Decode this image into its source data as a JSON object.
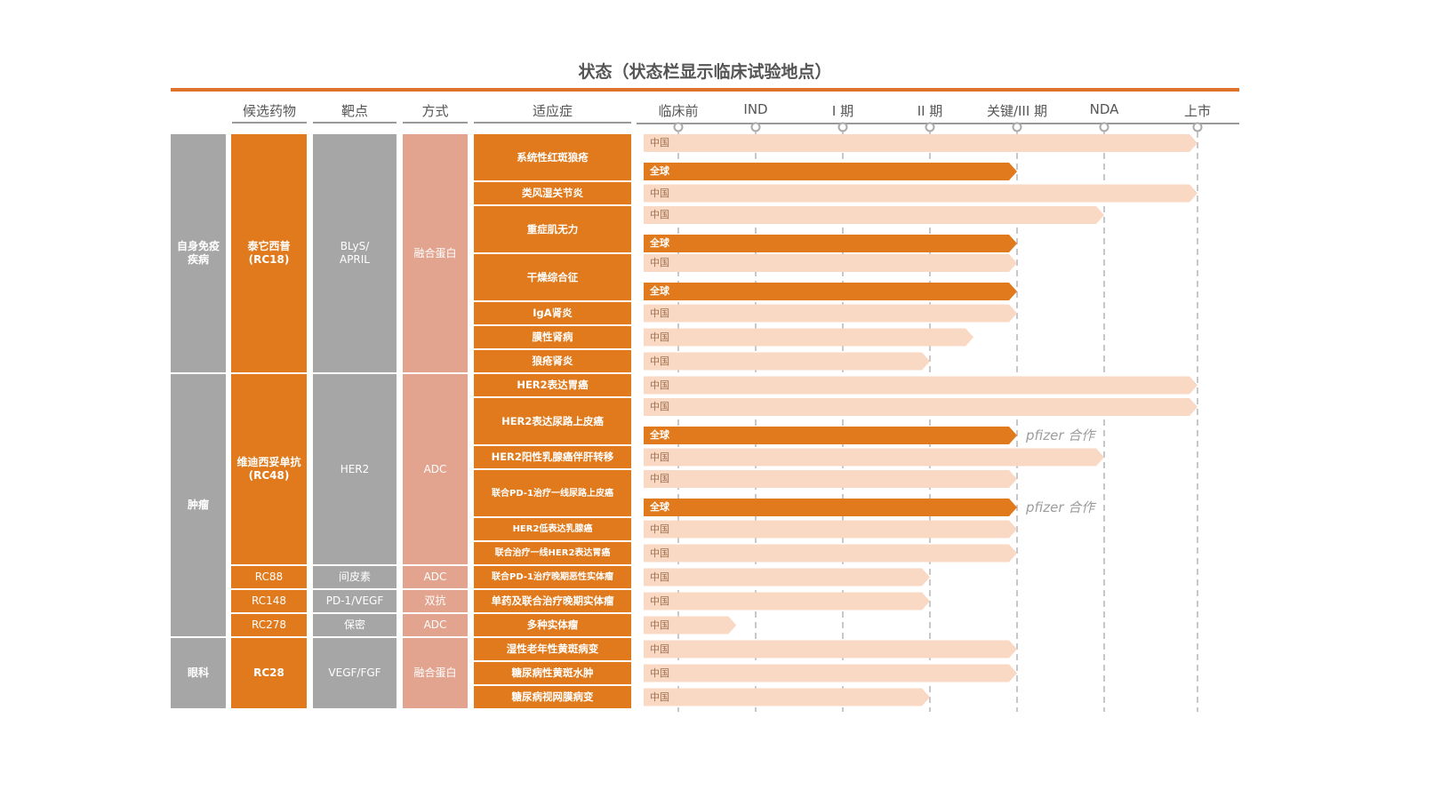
{
  "title": "状态（状态栏显示临床试验地点）",
  "columns": {
    "drug": "候选药物",
    "target": "靶点",
    "modality": "方式",
    "indication": "适应症"
  },
  "chart_data": {
    "type": "gantt",
    "phases": [
      "临床前",
      "IND",
      "I 期",
      "II 期",
      "关键/III  期",
      "NDA",
      "上市"
    ],
    "region_labels": {
      "cn": "中国",
      "global": "全球"
    },
    "colors": {
      "china_bar": "#F9D8C4",
      "global_bar": "#E07A1C",
      "grey": "#A6A6A6",
      "orange": "#E07A1C",
      "pink": "#E2A48F"
    },
    "categories": [
      {
        "name": "自身免疫\n疾病"
      },
      {
        "name": "肿瘤"
      },
      {
        "name": "眼科"
      }
    ],
    "drugs": [
      {
        "name": "泰它西普\n(RC18)",
        "target": "BLyS/\nAPRIL",
        "modality": "融合蛋白"
      },
      {
        "name": "维迪西妥单抗\n(RC48)",
        "target": "HER2",
        "modality": "ADC"
      },
      {
        "name": "RC88",
        "target": "间皮素",
        "modality": "ADC"
      },
      {
        "name": "RC148",
        "target": "PD-1/VEGF",
        "modality": "双抗"
      },
      {
        "name": "RC278",
        "target": "保密",
        "modality": "ADC"
      },
      {
        "name": "RC28",
        "target": "VEGF/FGF",
        "modality": "融合蛋白"
      }
    ],
    "indications": [
      {
        "name": "系统性红斑狼疮",
        "drug": 0,
        "bars": [
          {
            "region": "cn",
            "progress": 6
          },
          {
            "region": "global",
            "progress": 4
          }
        ]
      },
      {
        "name": "类风湿关节炎",
        "drug": 0,
        "bars": [
          {
            "region": "cn",
            "progress": 6
          }
        ]
      },
      {
        "name": "重症肌无力",
        "drug": 0,
        "bars": [
          {
            "region": "cn",
            "progress": 5
          },
          {
            "region": "global",
            "progress": 4
          }
        ]
      },
      {
        "name": "干燥综合征",
        "drug": 0,
        "bars": [
          {
            "region": "cn",
            "progress": 4
          },
          {
            "region": "global",
            "progress": 4
          }
        ]
      },
      {
        "name": "IgA肾炎",
        "drug": 0,
        "bars": [
          {
            "region": "cn",
            "progress": 4
          }
        ]
      },
      {
        "name": "膜性肾病",
        "drug": 0,
        "bars": [
          {
            "region": "cn",
            "progress": 3.5
          }
        ]
      },
      {
        "name": "狼疮肾炎",
        "drug": 0,
        "bars": [
          {
            "region": "cn",
            "progress": 3
          }
        ]
      },
      {
        "name": "HER2表达胃癌",
        "drug": 1,
        "bars": [
          {
            "region": "cn",
            "progress": 6
          }
        ]
      },
      {
        "name": "HER2表达尿路上皮癌",
        "drug": 1,
        "bars": [
          {
            "region": "cn",
            "progress": 6
          },
          {
            "region": "global",
            "progress": 4,
            "note": "pfizer  合作"
          }
        ]
      },
      {
        "name": "HER2阳性乳腺癌伴肝转移",
        "drug": 1,
        "bars": [
          {
            "region": "cn",
            "progress": 5
          }
        ]
      },
      {
        "name": "联合PD-1治疗一线尿路上皮癌",
        "drug": 1,
        "small": true,
        "bars": [
          {
            "region": "cn",
            "progress": 4
          },
          {
            "region": "global",
            "progress": 4,
            "note": "pfizer  合作"
          }
        ]
      },
      {
        "name": "HER2低表达乳腺癌",
        "drug": 1,
        "small": true,
        "bars": [
          {
            "region": "cn",
            "progress": 4
          }
        ]
      },
      {
        "name": "联合治疗一线HER2表达胃癌",
        "drug": 1,
        "small": true,
        "bars": [
          {
            "region": "cn",
            "progress": 4
          }
        ]
      },
      {
        "name": "联合PD-1治疗晚期恶性实体瘤",
        "drug": 2,
        "small": true,
        "bars": [
          {
            "region": "cn",
            "progress": 3
          }
        ]
      },
      {
        "name": "单药及联合治疗晚期实体瘤",
        "drug": 3,
        "bars": [
          {
            "region": "cn",
            "progress": 3
          }
        ]
      },
      {
        "name": "多种实体瘤",
        "drug": 4,
        "bars": [
          {
            "region": "cn",
            "progress": 0.75
          }
        ]
      },
      {
        "name": "湿性老年性黄斑病变",
        "drug": 5,
        "bars": [
          {
            "region": "cn",
            "progress": 4
          }
        ]
      },
      {
        "name": "糖尿病性黄斑水肿",
        "drug": 5,
        "bars": [
          {
            "region": "cn",
            "progress": 4
          }
        ]
      },
      {
        "name": "糖尿病视网膜病变",
        "drug": 5,
        "bars": [
          {
            "region": "cn",
            "progress": 3
          }
        ]
      }
    ]
  }
}
